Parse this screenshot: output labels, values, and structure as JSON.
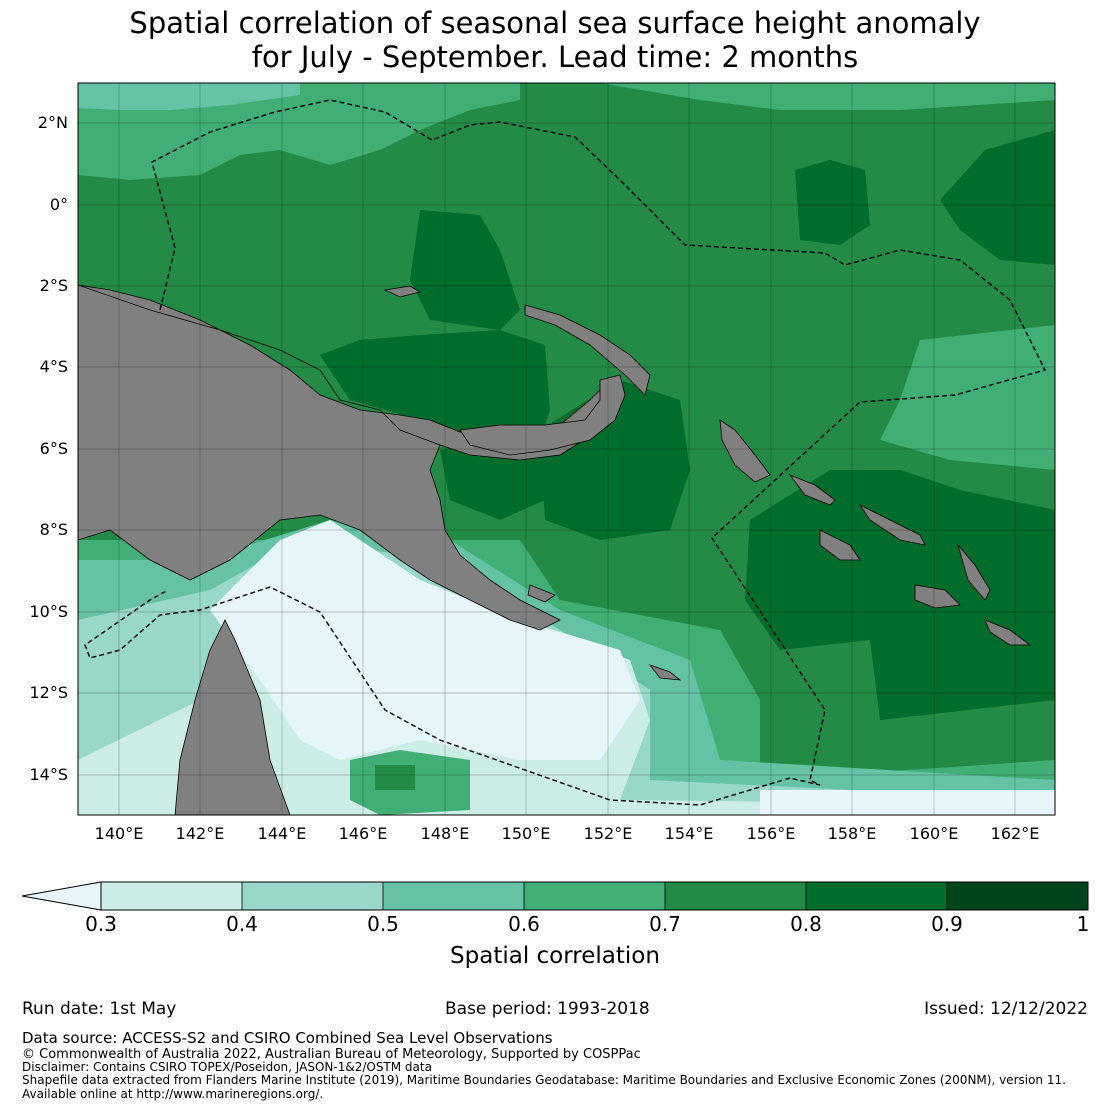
{
  "title": {
    "line1": "Spatial correlation of seasonal sea surface height anomaly",
    "line2": "for July - September. Lead time: 2 months"
  },
  "map": {
    "lat_labels": [
      "2°N",
      "0°",
      "2°S",
      "4°S",
      "6°S",
      "8°S",
      "10°S",
      "12°S",
      "14°S"
    ],
    "lon_labels": [
      "140°E",
      "142°E",
      "144°E",
      "146°E",
      "148°E",
      "150°E",
      "152°E",
      "154°E",
      "156°E",
      "158°E",
      "160°E",
      "162°E"
    ],
    "lon_range": [
      139,
      163
    ],
    "lat_range": [
      -15,
      3
    ],
    "land_color": "#808080",
    "boundary_style": "dashed"
  },
  "colorbar": {
    "ticks": [
      "0.3",
      "0.4",
      "0.5",
      "0.6",
      "0.7",
      "0.8",
      "0.9",
      "1"
    ],
    "label": "Spatial correlation",
    "colors": [
      "#e5f5f9",
      "#ccece6",
      "#99d8c9",
      "#66c2a4",
      "#41ae76",
      "#238b45",
      "#006d2c",
      "#00441b"
    ],
    "extend": "min"
  },
  "footer": {
    "run_date": "Run date: 1st May",
    "base_period": "Base period: 1993-2018",
    "issued": "Issued: 12/12/2022",
    "data_source": "Data source: ACCESS-S2 and CSIRO Combined Sea Level Observations",
    "copyright": "© Commonwealth of Australia 2022, Australian Bureau of Meteorology, Supported by COSPPac",
    "disclaimer": "Disclaimer: Contains CSIRO TOPEX/Poseidon, JASON-1&2/OSTM data",
    "shapefile": "Shapefile data extracted from Flanders Marine Institute (2019), Maritime Boundaries Geodatabase: Maritime Boundaries and Exclusive Economic Zones (200NM), version 11.",
    "available": "Available online at http://www.marineregions.org/."
  }
}
